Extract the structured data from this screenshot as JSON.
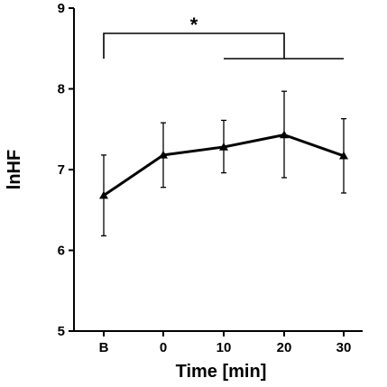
{
  "chart_data": {
    "type": "line",
    "xlabel": "Time [min]",
    "ylabel": "lnHF",
    "categories": [
      "B",
      "0",
      "10",
      "20",
      "30"
    ],
    "ylim": [
      5,
      9
    ],
    "yticks": [
      5,
      6,
      7,
      8,
      9
    ],
    "grid": false,
    "series": [
      {
        "values": [
          6.68,
          7.18,
          7.28,
          7.43,
          7.17
        ],
        "error_low": [
          6.18,
          6.78,
          6.96,
          6.9,
          6.71
        ],
        "error_high": [
          7.18,
          7.58,
          7.61,
          7.97,
          7.63
        ],
        "marker": "triangle",
        "color": "#000000"
      }
    ],
    "annotations": [
      {
        "type": "significance-bracket",
        "label": "*",
        "from_category": "B",
        "to_category": "20",
        "secondary_bar": [
          "10",
          "30"
        ]
      }
    ]
  }
}
